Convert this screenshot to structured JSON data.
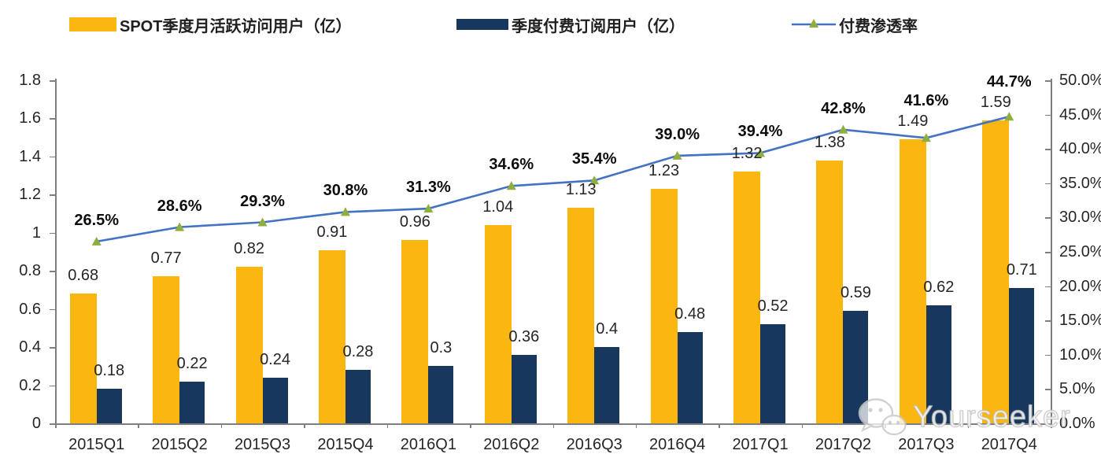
{
  "legend": {
    "items": [
      {
        "label": "SPOT季度月活跃访问用户（亿）",
        "swatch": "bar",
        "color": "#FBB70F"
      },
      {
        "label": "季度付费订阅用户（亿）",
        "swatch": "bar",
        "color": "#17375E"
      },
      {
        "label": "付费渗透率",
        "swatch": "line-marker",
        "color": "#4472C4",
        "marker_color": "#8FAE3E"
      }
    ]
  },
  "chart_data": {
    "type": "bar+line combo",
    "categories": [
      "2015Q1",
      "2015Q2",
      "2015Q3",
      "2015Q4",
      "2016Q1",
      "2016Q2",
      "2016Q3",
      "2016Q4",
      "2017Q1",
      "2017Q2",
      "2017Q3",
      "2017Q4"
    ],
    "series": [
      {
        "name": "SPOT季度月活跃访问用户（亿）",
        "type": "bar",
        "axis": "left",
        "color": "#FBB70F",
        "values": [
          0.68,
          0.77,
          0.82,
          0.91,
          0.96,
          1.04,
          1.13,
          1.23,
          1.32,
          1.38,
          1.49,
          1.59
        ],
        "labels": [
          "0.68",
          "0.77",
          "0.82",
          "0.91",
          "0.96",
          "1.04",
          "1.13",
          "1.23",
          "1.32",
          "1.38",
          "1.49",
          "1.59"
        ]
      },
      {
        "name": "季度付费订阅用户（亿）",
        "type": "bar",
        "axis": "left",
        "color": "#17375E",
        "values": [
          0.18,
          0.22,
          0.24,
          0.28,
          0.3,
          0.36,
          0.4,
          0.48,
          0.52,
          0.59,
          0.62,
          0.71
        ],
        "labels": [
          "0.18",
          "0.22",
          "0.24",
          "0.28",
          "0.3",
          "0.36",
          "0.4",
          "0.48",
          "0.52",
          "0.59",
          "0.62",
          "0.71"
        ]
      },
      {
        "name": "付费渗透率",
        "type": "line",
        "axis": "right",
        "color": "#4472C4",
        "marker": "triangle",
        "marker_color": "#8FAE3E",
        "values": [
          26.5,
          28.6,
          29.3,
          30.8,
          31.3,
          34.6,
          35.4,
          39.0,
          39.4,
          42.8,
          41.6,
          44.7
        ],
        "labels": [
          "26.5%",
          "28.6%",
          "29.3%",
          "30.8%",
          "31.3%",
          "34.6%",
          "35.4%",
          "39.0%",
          "39.4%",
          "42.8%",
          "41.6%",
          "44.7%"
        ]
      }
    ],
    "left_axis": {
      "min": 0,
      "max": 1.8,
      "step": 0.2,
      "ticks": [
        "0",
        "0.2",
        "0.4",
        "0.6",
        "0.8",
        "1",
        "1.2",
        "1.4",
        "1.6",
        "1.8"
      ]
    },
    "right_axis": {
      "min": 0,
      "max": 50,
      "step": 5,
      "ticks": [
        "0.0%",
        "5.0%",
        "10.0%",
        "15.0%",
        "20.0%",
        "25.0%",
        "30.0%",
        "35.0%",
        "40.0%",
        "45.0%",
        "50.0%"
      ]
    },
    "grid": false,
    "legend_position": "top",
    "title": ""
  },
  "watermark": {
    "text": "Yourseeker",
    "icon": "wechat-icon"
  },
  "colors": {
    "bar_mau": "#FBB70F",
    "bar_subscribers": "#17375E",
    "line": "#4472C4",
    "line_marker": "#8FAE3E",
    "axis": "#7F7F7F",
    "bar_label": "#262626",
    "pct_label": "#0D0D0D"
  }
}
